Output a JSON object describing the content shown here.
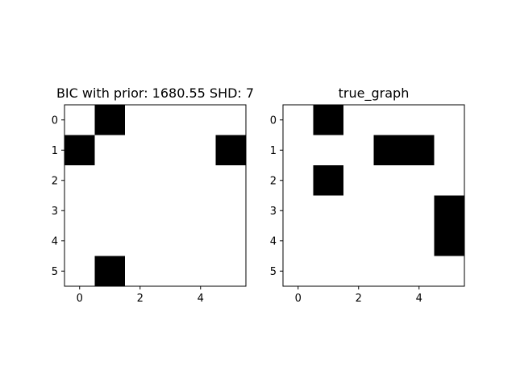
{
  "chart_data": [
    {
      "type": "heatmap",
      "title": "BIC with prior: 1680.55 SHD: 7",
      "rows": 6,
      "cols": 6,
      "xticks": [
        0,
        2,
        4
      ],
      "yticks": [
        0,
        1,
        2,
        3,
        4,
        5
      ],
      "xlim": [
        -0.5,
        5.5
      ],
      "ylim": [
        5.5,
        -0.5
      ],
      "colormap": "binary",
      "colors": {
        "zero": "#ffffff",
        "one": "#000000"
      },
      "matrix": [
        [
          0,
          1,
          0,
          0,
          0,
          0
        ],
        [
          1,
          0,
          0,
          0,
          0,
          1
        ],
        [
          0,
          0,
          0,
          0,
          0,
          0
        ],
        [
          0,
          0,
          0,
          0,
          0,
          0
        ],
        [
          0,
          0,
          0,
          0,
          0,
          0
        ],
        [
          0,
          1,
          0,
          0,
          0,
          0
        ]
      ]
    },
    {
      "type": "heatmap",
      "title": "true_graph",
      "rows": 6,
      "cols": 6,
      "xticks": [
        0,
        2,
        4
      ],
      "yticks": [
        0,
        1,
        2,
        3,
        4,
        5
      ],
      "xlim": [
        -0.5,
        5.5
      ],
      "ylim": [
        5.5,
        -0.5
      ],
      "colormap": "binary",
      "colors": {
        "zero": "#ffffff",
        "one": "#000000"
      },
      "matrix": [
        [
          0,
          1,
          0,
          0,
          0,
          0
        ],
        [
          0,
          0,
          0,
          1,
          1,
          0
        ],
        [
          0,
          1,
          0,
          0,
          0,
          0
        ],
        [
          0,
          0,
          0,
          0,
          0,
          1
        ],
        [
          0,
          0,
          0,
          0,
          0,
          1
        ],
        [
          0,
          0,
          0,
          0,
          0,
          0
        ]
      ]
    }
  ]
}
